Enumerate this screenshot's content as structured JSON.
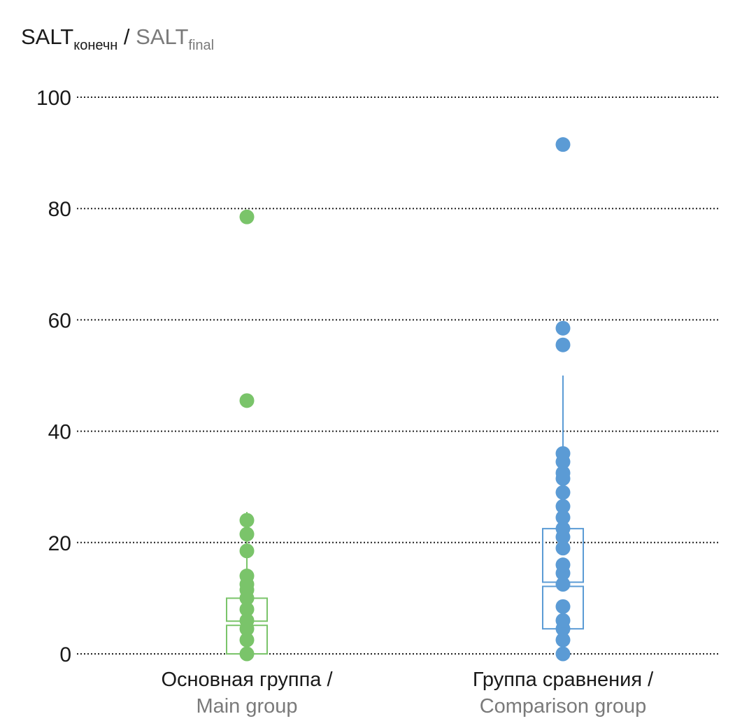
{
  "chart_data": {
    "type": "scatter",
    "y_axis_title": {
      "primary": "SALT",
      "primary_sub": "конечн",
      "separator": " / ",
      "secondary": "SALT",
      "secondary_sub": "final"
    },
    "ylim": [
      0,
      100
    ],
    "yticks": [
      0,
      20,
      40,
      60,
      80,
      100
    ],
    "grid": true,
    "grid_style": "dotted",
    "categories": [
      {
        "label_primary": "Основная группа /",
        "label_secondary": "Main group"
      },
      {
        "label_primary": "Группа сравнения /",
        "label_secondary": "Comparison group"
      }
    ],
    "series": [
      {
        "color": "#7ac46a",
        "points": [
          0,
          2.5,
          4.5,
          6,
          8,
          10,
          11.5,
          12.5,
          14,
          18.5,
          21.5,
          24,
          45.5,
          78.5
        ],
        "box": {
          "whisker_low": 0,
          "q1": 0,
          "median": 5.5,
          "q3": 10,
          "whisker_high": 25.5
        }
      },
      {
        "color": "#5b9bd5",
        "points": [
          0,
          2.5,
          4.5,
          6,
          8.5,
          12.5,
          14.5,
          16,
          19,
          21,
          22.5,
          24.5,
          26.5,
          29,
          31.5,
          32.5,
          34.5,
          36,
          55.5,
          58.5,
          91.5
        ],
        "box": {
          "whisker_low": 4.5,
          "q1": 4.5,
          "median": 12.5,
          "q3": 22.5,
          "whisker_high": 50
        }
      }
    ]
  }
}
